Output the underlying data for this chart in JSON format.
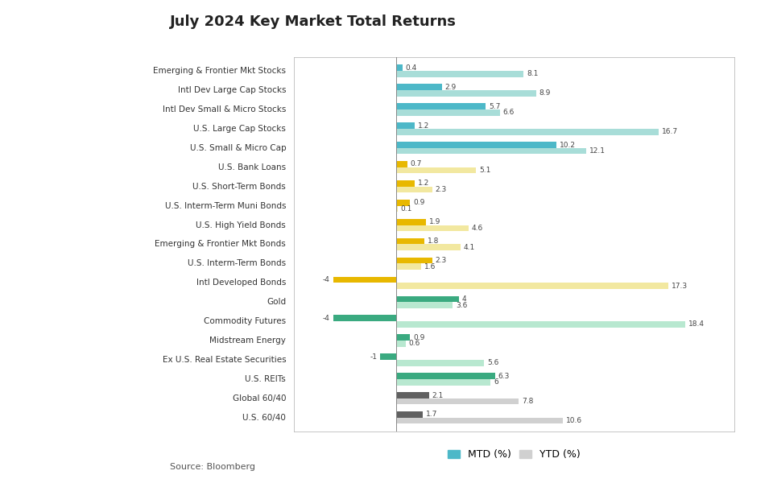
{
  "title": "July 2024 Key Market Total Returns",
  "source": "Source: Bloomberg",
  "categories": [
    "Emerging & Frontier Mkt Stocks",
    "Intl Dev Large Cap Stocks",
    "Intl Dev Small & Micro Stocks",
    "U.S. Large Cap Stocks",
    "U.S. Small & Micro Cap",
    "U.S. Bank Loans",
    "U.S. Short-Term Bonds",
    "U.S. Interm-Term Muni Bonds",
    "U.S. High Yield Bonds",
    "Emerging & Frontier Mkt Bonds",
    "U.S. Interm-Term Bonds",
    "Intl Developed Bonds",
    "Gold",
    "Commodity Futures",
    "Midstream Energy",
    "Ex U.S. Real Estate Securities",
    "U.S. REITs",
    "Global 60/40",
    "U.S. 60/40"
  ],
  "mtd": [
    0.4,
    2.9,
    5.7,
    1.2,
    10.2,
    0.7,
    1.2,
    0.9,
    1.9,
    1.8,
    2.3,
    -4.0,
    4.0,
    -4.0,
    0.9,
    -1.0,
    6.3,
    2.1,
    1.7
  ],
  "ytd": [
    8.1,
    8.9,
    6.6,
    16.7,
    12.1,
    5.1,
    2.3,
    0.1,
    4.6,
    4.1,
    1.6,
    17.3,
    3.6,
    18.4,
    0.6,
    5.6,
    6.0,
    7.8,
    10.6
  ],
  "mtd_color_list": [
    "#4db8c8",
    "#4db8c8",
    "#4db8c8",
    "#4db8c8",
    "#4db8c8",
    "#e8b800",
    "#e8b800",
    "#e8b800",
    "#e8b800",
    "#e8b800",
    "#e8b800",
    "#e8b800",
    "#3aaa80",
    "#3aaa80",
    "#3aaa80",
    "#3aaa80",
    "#3aaa80",
    "#606060",
    "#606060"
  ],
  "ytd_color_list": [
    "#a8ddd8",
    "#a8ddd8",
    "#a8ddd8",
    "#a8ddd8",
    "#a8ddd8",
    "#f2e8a0",
    "#f2e8a0",
    "#f2e8a0",
    "#f2e8a0",
    "#f2e8a0",
    "#f2e8a0",
    "#f2e8a0",
    "#b8e8d0",
    "#b8e8d0",
    "#b8e8d0",
    "#b8e8d0",
    "#b8e8d0",
    "#d0d0d0",
    "#d0d0d0"
  ],
  "legend_mtd_color": "#4db8c8",
  "legend_ytd_color": "#d0d0d0",
  "background_color": "#ffffff",
  "xlim": [
    -6.5,
    21.5
  ],
  "bar_height": 0.32,
  "fontsize_labels": 7.5,
  "fontsize_values": 6.5,
  "title_fontsize": 13
}
